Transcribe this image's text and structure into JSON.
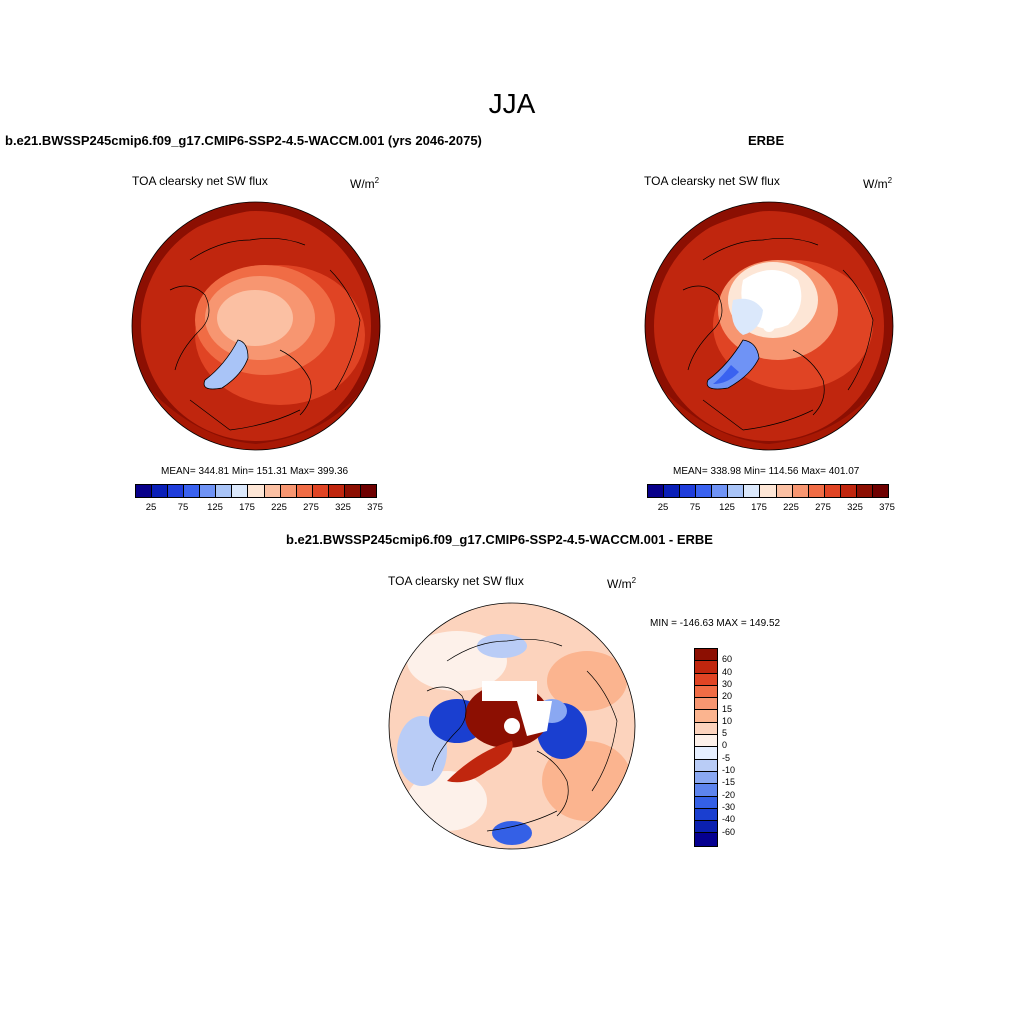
{
  "season": "JJA",
  "panels": {
    "model": {
      "title": "b.e21.BWSSP245cmip6.f09_g17.CMIP6-SSP2-4.5-WACCM.001 (yrs 2046-2075)",
      "variable": "TOA clearsky net SW flux",
      "unit": "W/m",
      "unit_exp": "2",
      "stats": "MEAN= 344.81   Min= 151.31   Max= 399.36"
    },
    "obs": {
      "title": "ERBE",
      "variable": "TOA clearsky net SW flux",
      "unit": "W/m",
      "unit_exp": "2",
      "stats": "MEAN= 338.98   Min= 114.56   Max= 401.07"
    },
    "diff": {
      "title": "b.e21.BWSSP245cmip6.f09_g17.CMIP6-SSP2-4.5-WACCM.001 - ERBE",
      "variable": "TOA clearsky net SW flux",
      "unit": "W/m",
      "unit_exp": "2",
      "stats": "MIN = -146.63 MAX = 149.52"
    }
  },
  "colorbar_abs": {
    "ticks": [
      "25",
      "75",
      "125",
      "175",
      "225",
      "275",
      "325",
      "375"
    ],
    "colors": [
      "#08008a",
      "#0a1fb8",
      "#1f3ddb",
      "#3a62f0",
      "#6f93f5",
      "#a9c4f7",
      "#dbe8fb",
      "#fde6d6",
      "#fbc0a3",
      "#f79671",
      "#f06c45",
      "#e04424",
      "#c0260e",
      "#8c0f02",
      "#6e0000"
    ]
  },
  "colorbar_diff": {
    "labels": [
      "60",
      "40",
      "30",
      "20",
      "15",
      "10",
      "5",
      "0",
      "-5",
      "-10",
      "-15",
      "-20",
      "-30",
      "-40",
      "-60"
    ],
    "colors": [
      "#8c0f02",
      "#c0260e",
      "#e04424",
      "#f06c45",
      "#f79671",
      "#fbb48f",
      "#fcd3bd",
      "#fdf1ea",
      "#e6efff",
      "#b9ccf6",
      "#8aa8f2",
      "#5d84ee",
      "#3460e6",
      "#1a3fd0",
      "#0b20b0",
      "#050090"
    ]
  }
}
